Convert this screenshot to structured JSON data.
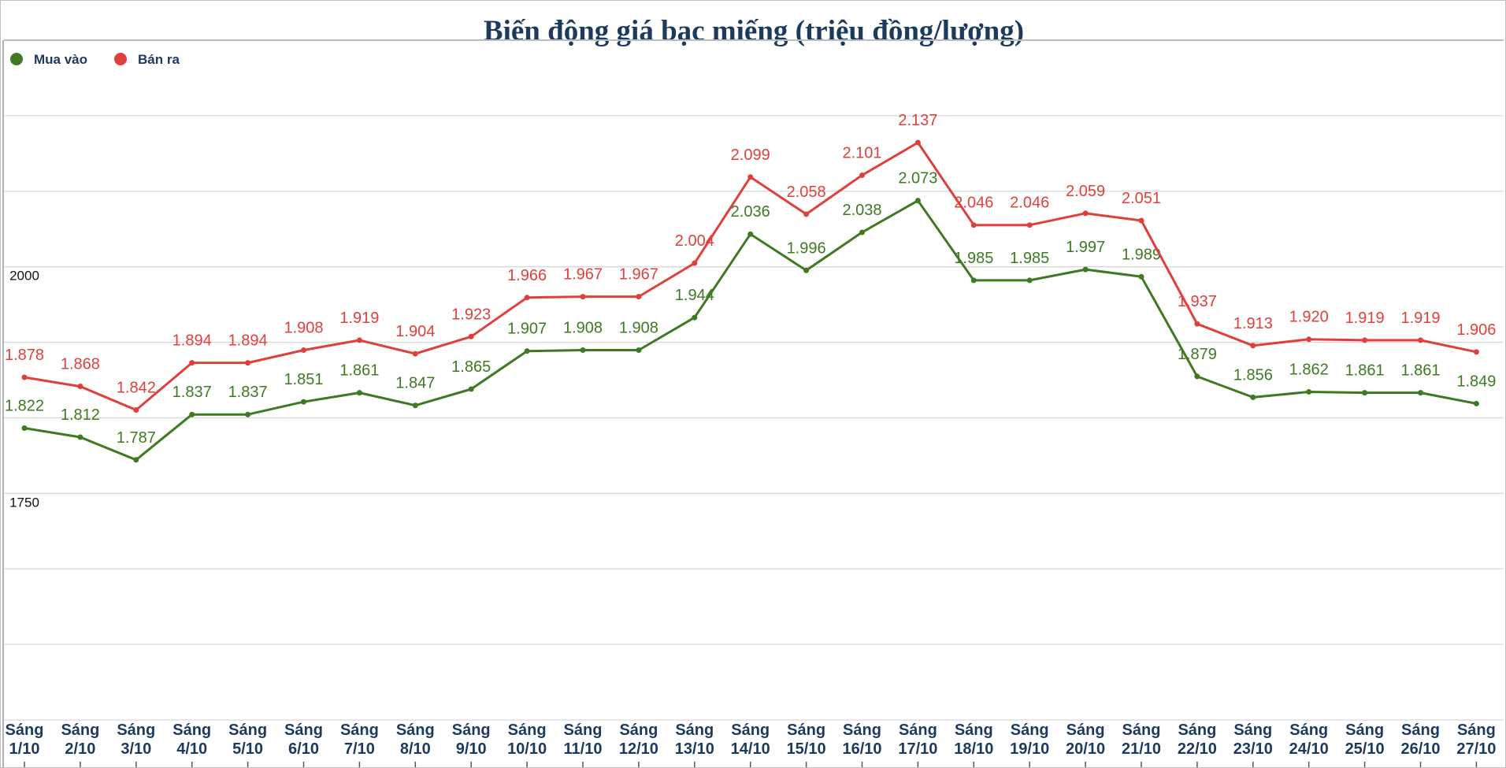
{
  "chart_data": {
    "type": "line",
    "title": "Biến động giá bạc miếng (triệu đồng/lượng)",
    "xlabel": "",
    "ylabel": "",
    "categories": [
      [
        "Sáng",
        "1/10"
      ],
      [
        "Sáng",
        "2/10"
      ],
      [
        "Sáng",
        "3/10"
      ],
      [
        "Sáng",
        "4/10"
      ],
      [
        "Sáng",
        "5/10"
      ],
      [
        "Sáng",
        "6/10"
      ],
      [
        "Sáng",
        "7/10"
      ],
      [
        "Sáng",
        "8/10"
      ],
      [
        "Sáng",
        "9/10"
      ],
      [
        "Sáng",
        "10/10"
      ],
      [
        "Sáng",
        "11/10"
      ],
      [
        "Sáng",
        "12/10"
      ],
      [
        "Sáng",
        "13/10"
      ],
      [
        "Sáng",
        "14/10"
      ],
      [
        "Sáng",
        "15/10"
      ],
      [
        "Sáng",
        "16/10"
      ],
      [
        "Sáng",
        "17/10"
      ],
      [
        "Sáng",
        "18/10"
      ],
      [
        "Sáng",
        "19/10"
      ],
      [
        "Sáng",
        "20/10"
      ],
      [
        "Sáng",
        "21/10"
      ],
      [
        "Sáng",
        "22/10"
      ],
      [
        "Sáng",
        "23/10"
      ],
      [
        "Sáng",
        "24/10"
      ],
      [
        "Sáng",
        "25/10"
      ],
      [
        "Sáng",
        "26/10"
      ],
      [
        "Sáng",
        "27/10"
      ]
    ],
    "series": [
      {
        "name": "Mua vào",
        "color": "#3d7a22",
        "values": [
          1822,
          1812,
          1787,
          1837,
          1837,
          1851,
          1861,
          1847,
          1865,
          1907,
          1908,
          1908,
          1944,
          2036,
          1996,
          2038,
          2073,
          1985,
          1985,
          1997,
          1989,
          1879,
          1856,
          1862,
          1861,
          1861,
          1849
        ],
        "labels": [
          "1.822",
          "1.812",
          "1.787",
          "1.837",
          "1.837",
          "1.851",
          "1.861",
          "1.847",
          "1.865",
          "1.907",
          "1.908",
          "1.908",
          "1.944",
          "2.036",
          "1.996",
          "2.038",
          "2.073",
          "1.985",
          "1.985",
          "1.997",
          "1.989",
          "1.879",
          "1.856",
          "1.862",
          "1.861",
          "1.861",
          "1.849"
        ]
      },
      {
        "name": "Bán ra",
        "color": "#e0403b",
        "values": [
          1878,
          1868,
          1842,
          1894,
          1894,
          1908,
          1919,
          1904,
          1923,
          1966,
          1967,
          1967,
          2004,
          2099,
          2058,
          2101,
          2137,
          2046,
          2046,
          2059,
          2051,
          1937,
          1913,
          1920,
          1919,
          1919,
          1906
        ],
        "labels": [
          "1.878",
          "1.868",
          "1.842",
          "1.894",
          "1.894",
          "1.908",
          "1.919",
          "1.904",
          "1.923",
          "1.966",
          "1.967",
          "1.967",
          "2.004",
          "2.099",
          "2.058",
          "2.101",
          "2.137",
          "2.046",
          "2.046",
          "2.059",
          "2.051",
          "1.937",
          "1.913",
          "1.920",
          "1.919",
          "1.919",
          "1.906"
        ]
      }
    ],
    "ylim": [
      1500,
      2250
    ],
    "ygrid_step": 83.333,
    "ytick_labels": [
      {
        "value": 2000,
        "label": "2000"
      },
      {
        "value": 1750,
        "label": "1750"
      }
    ],
    "grid": true,
    "legend": "top-left",
    "colors": {
      "title": "#1c3a5e",
      "legend_text": "#1c3a5e",
      "axis_label": "#1c3a5e",
      "gridline": "#d9d9d9",
      "axis": "#999999"
    }
  }
}
